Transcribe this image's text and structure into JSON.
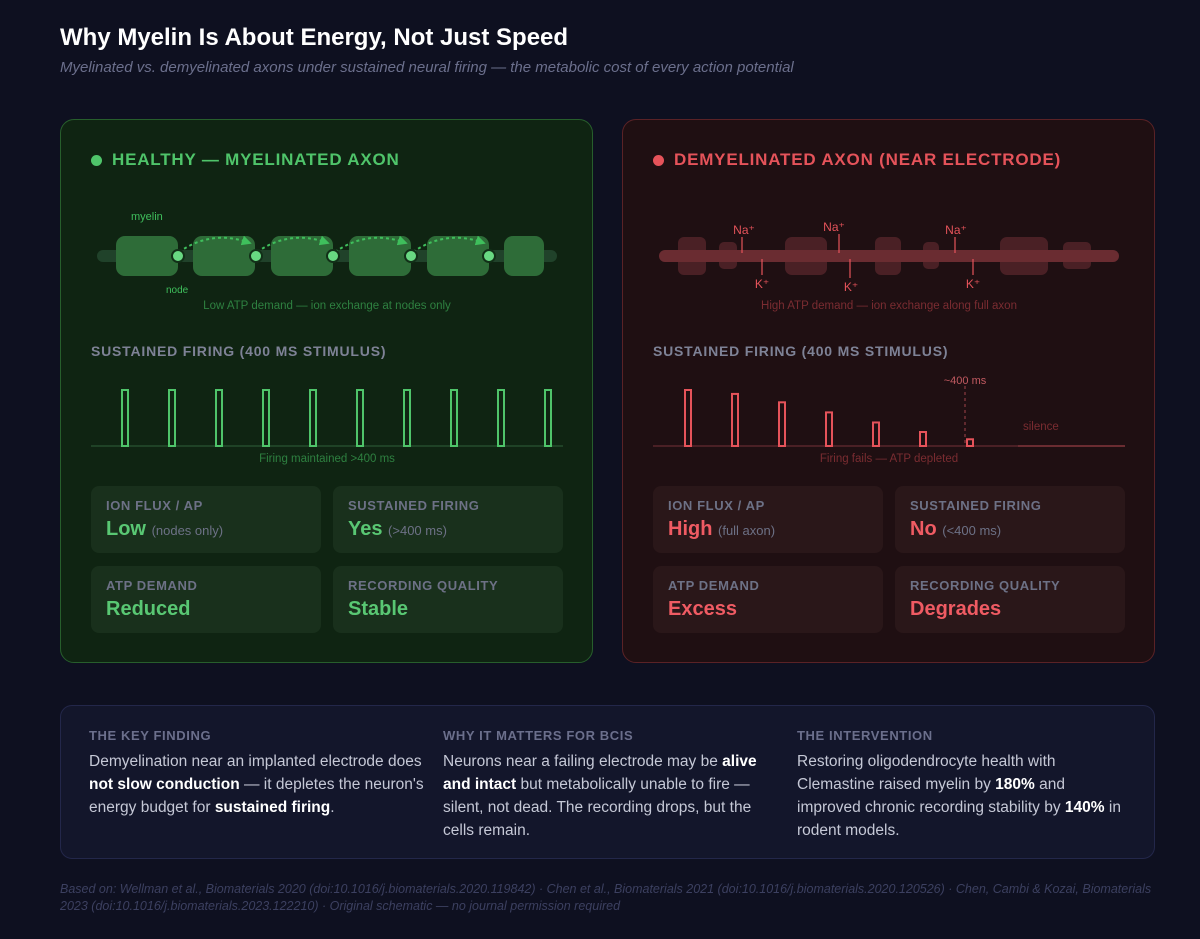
{
  "header": {
    "title": "Why Myelin Is About Energy, Not Just Speed",
    "subtitle": "Myelinated vs. demyelinated axons under sustained neural firing — the metabolic cost of every action potential"
  },
  "healthy": {
    "heading": "HEALTHY — MYELINATED AXON",
    "myelin_label": "myelin",
    "node_label": "node",
    "axon_caption": "Low ATP demand — ion exchange at nodes only",
    "firing_label": "SUSTAINED FIRING (400 MS STIMULUS)",
    "spike_heights": [
      1,
      1,
      1,
      1,
      1,
      1,
      1,
      1,
      1,
      1
    ],
    "spike_caption": "Firing maintained >400 ms",
    "stats": [
      {
        "label": "ION FLUX / AP",
        "value": "Low",
        "note": "(nodes only)"
      },
      {
        "label": "SUSTAINED FIRING",
        "value": "Yes",
        "note": "(>400 ms)"
      },
      {
        "label": "ATP DEMAND",
        "value": "Reduced",
        "note": ""
      },
      {
        "label": "RECORDING QUALITY",
        "value": "Stable",
        "note": ""
      }
    ]
  },
  "demyelinated": {
    "heading": "DEMYELINATED AXON (NEAR ELECTRODE)",
    "na_label": "Na⁺",
    "k_label": "K⁺",
    "axon_caption": "High ATP demand — ion exchange along full axon",
    "firing_label": "SUSTAINED FIRING (400 MS STIMULUS)",
    "marker_label": "~400 ms",
    "silence_label": "silence",
    "spike_heights": [
      1,
      0.93,
      0.78,
      0.6,
      0.42,
      0.25,
      0.12
    ],
    "spike_caption": "Firing fails — ATP depleted",
    "stats": [
      {
        "label": "ION FLUX / AP",
        "value": "High",
        "note": "(full axon)"
      },
      {
        "label": "SUSTAINED FIRING",
        "value": "No",
        "note": "(<400 ms)"
      },
      {
        "label": "ATP DEMAND",
        "value": "Excess",
        "note": ""
      },
      {
        "label": "RECORDING QUALITY",
        "value": "Degrades",
        "note": ""
      }
    ]
  },
  "findings": [
    {
      "label": "THE KEY FINDING",
      "parts": [
        {
          "t": "Demyelination near an implanted electrode does ",
          "b": false
        },
        {
          "t": "not slow conduction",
          "b": true
        },
        {
          "t": " — it depletes the neuron's energy budget for ",
          "b": false
        },
        {
          "t": "sustained firing",
          "b": true
        },
        {
          "t": ".",
          "b": false
        }
      ]
    },
    {
      "label": "WHY IT MATTERS FOR BCIS",
      "parts": [
        {
          "t": "Neurons near a failing electrode may be ",
          "b": false
        },
        {
          "t": "alive and intact",
          "b": true
        },
        {
          "t": " but metabolically unable to fire — silent, not dead. The recording drops, but the cells remain.",
          "b": false
        }
      ]
    },
    {
      "label": "THE INTERVENTION",
      "parts": [
        {
          "t": "Restoring oligodendrocyte health with Clemastine raised myelin by ",
          "b": false
        },
        {
          "t": "180%",
          "b": true
        },
        {
          "t": " and improved chronic recording stability by ",
          "b": false
        },
        {
          "t": "140%",
          "b": true
        },
        {
          "t": " in rodent models.",
          "b": false
        }
      ]
    }
  ],
  "footer": "Based on: Wellman et al., Biomaterials 2020 (doi:10.1016/j.biomaterials.2020.119842) · Chen et al., Biomaterials 2021 (doi:10.1016/j.biomaterials.2020.120526) · Chen, Cambi & Kozai, Biomaterials 2023 (doi:10.1016/j.biomaterials.2023.122210) · Original schematic — no journal permission required",
  "colors": {
    "healthy": "#4fc46a",
    "demyelinated": "#e5535a"
  }
}
